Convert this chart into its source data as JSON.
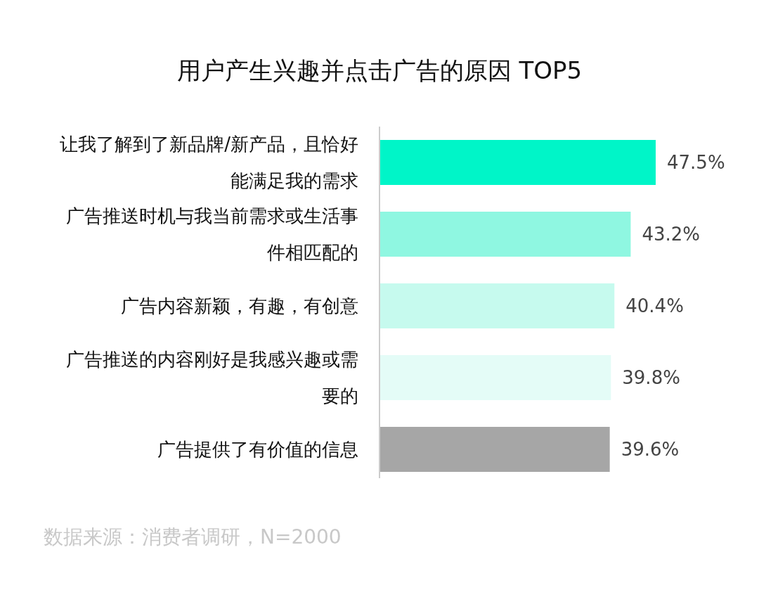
{
  "chart_data": {
    "type": "bar",
    "orientation": "horizontal",
    "title": "用户产生兴趣并点击广告的原因 TOP5",
    "categories": [
      "让我了解到了新品牌/新产品，且恰好能满足我的需求",
      "广告推送时机与我当前需求或生活事件相匹配的",
      "广告内容新颖，有趣，有创意",
      "广告推送的内容刚好是我感兴趣或需要的",
      "广告提供了有价值的信息"
    ],
    "values": [
      47.5,
      43.2,
      40.4,
      39.8,
      39.6
    ],
    "colors": [
      "#00f5c8",
      "#8ff7e1",
      "#c6faee",
      "#e4fcf7",
      "#a6a6a6"
    ],
    "value_labels": [
      "47.5%",
      "43.2%",
      "40.4%",
      "39.8%",
      "39.6%"
    ],
    "annotations": [
      "数据来源：消费者调研，N=2000"
    ]
  }
}
